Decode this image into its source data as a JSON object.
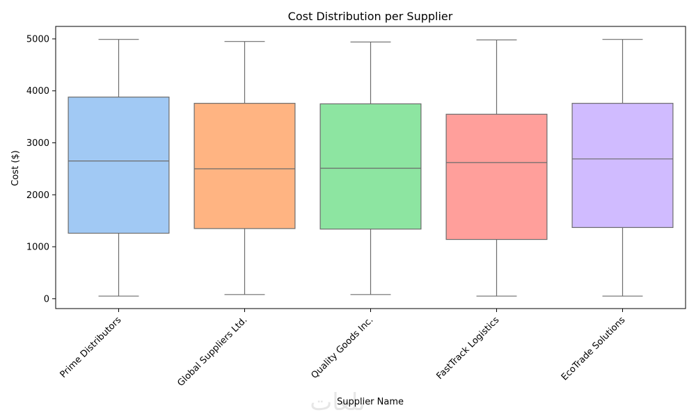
{
  "chart_data": {
    "type": "box",
    "title": "Cost Distribution per Supplier",
    "xlabel": "Supplier Name",
    "ylabel": "Cost ($)",
    "ylim": [
      -190,
      5240
    ],
    "yticks": [
      0,
      1000,
      2000,
      3000,
      4000,
      5000
    ],
    "grid": false,
    "categories": [
      "Prime Distributors",
      "Global Suppliers Ltd.",
      "Quality Goods Inc.",
      "FastTrack Logistics",
      "EcoTrade Solutions"
    ],
    "boxes": [
      {
        "category": "Prime Distributors",
        "min": 50,
        "q1": 1260,
        "median": 2650,
        "q3": 3880,
        "max": 4990,
        "color": "#a1c9f4"
      },
      {
        "category": "Global Suppliers Ltd.",
        "min": 80,
        "q1": 1350,
        "median": 2500,
        "q3": 3760,
        "max": 4950,
        "color": "#ffb482"
      },
      {
        "category": "Quality Goods Inc.",
        "min": 80,
        "q1": 1340,
        "median": 2510,
        "q3": 3750,
        "max": 4940,
        "color": "#8de5a1"
      },
      {
        "category": "FastTrack Logistics",
        "min": 50,
        "q1": 1140,
        "median": 2620,
        "q3": 3550,
        "max": 4980,
        "color": "#ff9f9b"
      },
      {
        "category": "EcoTrade Solutions",
        "min": 50,
        "q1": 1370,
        "median": 2690,
        "q3": 3760,
        "max": 4990,
        "color": "#d0bbff"
      }
    ],
    "line_color": "#6b6b6b"
  },
  "watermark": "تلعات"
}
